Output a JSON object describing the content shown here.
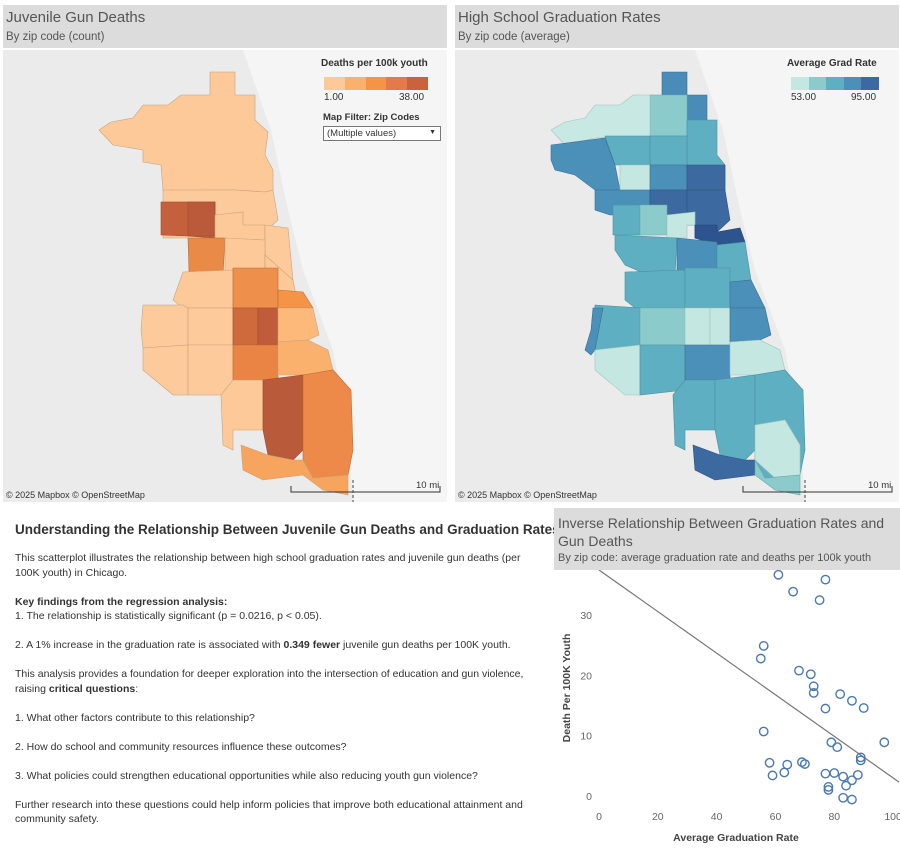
{
  "left_panel": {
    "title": "Juvenile Gun Deaths",
    "subtitle": "By zip code (count)",
    "legend_title": "Deaths per 100k youth",
    "legend_min": "1.00",
    "legend_max": "38.00",
    "legend_colors": [
      "#fdc998",
      "#fbb16e",
      "#f59447",
      "#e27b48",
      "#c9623d"
    ],
    "filter_title": "Map Filter: Zip Codes",
    "filter_value": "(Multiple values)",
    "attribution": "© 2025 Mapbox  © OpenStreetMap",
    "scale_label": "10 mi"
  },
  "right_panel": {
    "title": "High School Graduation Rates",
    "subtitle": "By zip code (average)",
    "legend_title": "Average Grad Rate",
    "legend_min": "53.00",
    "legend_max": "95.00",
    "legend_colors": [
      "#c5e7e2",
      "#8ccbcc",
      "#5fafc2",
      "#4a90b8",
      "#3c6aa0"
    ],
    "attribution": "© 2025 Mapbox  © OpenStreetMap",
    "scale_label": "10 mi"
  },
  "text": {
    "title": "Understanding the Relationship Between Juvenile Gun Deaths and Graduation Rates",
    "intro": "This scatterplot illustrates the relationship between high school graduation rates and juvenile gun deaths (per 100K youth) in Chicago.",
    "findings_heading": "Key findings from the regression analysis:",
    "finding_1": "1. The relationship is statistically significant (p = 0.0216, p < 0.05).",
    "finding_2_pre": "2. A 1% increase in the graduation rate is associated with ",
    "finding_2_bold": "0.349 fewer",
    "finding_2_post": " juvenile gun deaths per 100K youth.",
    "analysis_pre": "This analysis provides a foundation for deeper exploration into the intersection of education and gun violence, raising ",
    "analysis_bold": "critical questions",
    "analysis_post": ":",
    "q1": "1. What other factors contribute to this relationship?",
    "q2": "2. How do school and community resources influence these outcomes?",
    "q3": "3. What policies could strengthen educational opportunities while also reducing youth gun violence?",
    "conclusion": "Further research into these questions could help inform policies that improve both educational attainment and community safety."
  },
  "chart_data": {
    "type": "scatter",
    "title": "Inverse Relationship Between Graduation Rates and Gun Deaths",
    "subtitle": "By zip code: average graduation rate and deaths per 100k youth",
    "xlabel": "Average Graduation Rate",
    "ylabel": "Death Per 100K Youth",
    "xlim": [
      0,
      102
    ],
    "ylim": [
      -2,
      37
    ],
    "xticks": [
      0,
      20,
      40,
      60,
      80,
      100
    ],
    "yticks": [
      0,
      10,
      20,
      30
    ],
    "point_color": "#4a78b0",
    "trendline": {
      "slope": -0.349,
      "x_start": 0,
      "y_start": 37.5,
      "x_end": 102,
      "y_end": 2.3
    },
    "points": [
      {
        "x": 61,
        "y": 36.7
      },
      {
        "x": 77,
        "y": 35.9
      },
      {
        "x": 66,
        "y": 33.9
      },
      {
        "x": 75,
        "y": 32.5
      },
      {
        "x": 56,
        "y": 24.9
      },
      {
        "x": 55,
        "y": 22.8
      },
      {
        "x": 68,
        "y": 20.8
      },
      {
        "x": 72,
        "y": 20.2
      },
      {
        "x": 73,
        "y": 18.2
      },
      {
        "x": 73,
        "y": 17.1
      },
      {
        "x": 82,
        "y": 16.9
      },
      {
        "x": 86,
        "y": 15.8
      },
      {
        "x": 77,
        "y": 14.5
      },
      {
        "x": 90,
        "y": 14.6
      },
      {
        "x": 56,
        "y": 10.7
      },
      {
        "x": 79,
        "y": 8.9
      },
      {
        "x": 81,
        "y": 8.1
      },
      {
        "x": 97,
        "y": 8.9
      },
      {
        "x": 89,
        "y": 6.4
      },
      {
        "x": 89,
        "y": 5.9
      },
      {
        "x": 58,
        "y": 5.5
      },
      {
        "x": 69,
        "y": 5.6
      },
      {
        "x": 70,
        "y": 5.3
      },
      {
        "x": 64,
        "y": 5.2
      },
      {
        "x": 63,
        "y": 3.9
      },
      {
        "x": 59,
        "y": 3.4
      },
      {
        "x": 80,
        "y": 3.8
      },
      {
        "x": 77,
        "y": 3.7
      },
      {
        "x": 83,
        "y": 3.2
      },
      {
        "x": 88,
        "y": 3.5
      },
      {
        "x": 86,
        "y": 2.6
      },
      {
        "x": 78,
        "y": 1.5
      },
      {
        "x": 78,
        "y": 1.0
      },
      {
        "x": 84,
        "y": 1.7
      },
      {
        "x": 83,
        "y": -0.3
      },
      {
        "x": 86,
        "y": -0.6
      }
    ]
  }
}
